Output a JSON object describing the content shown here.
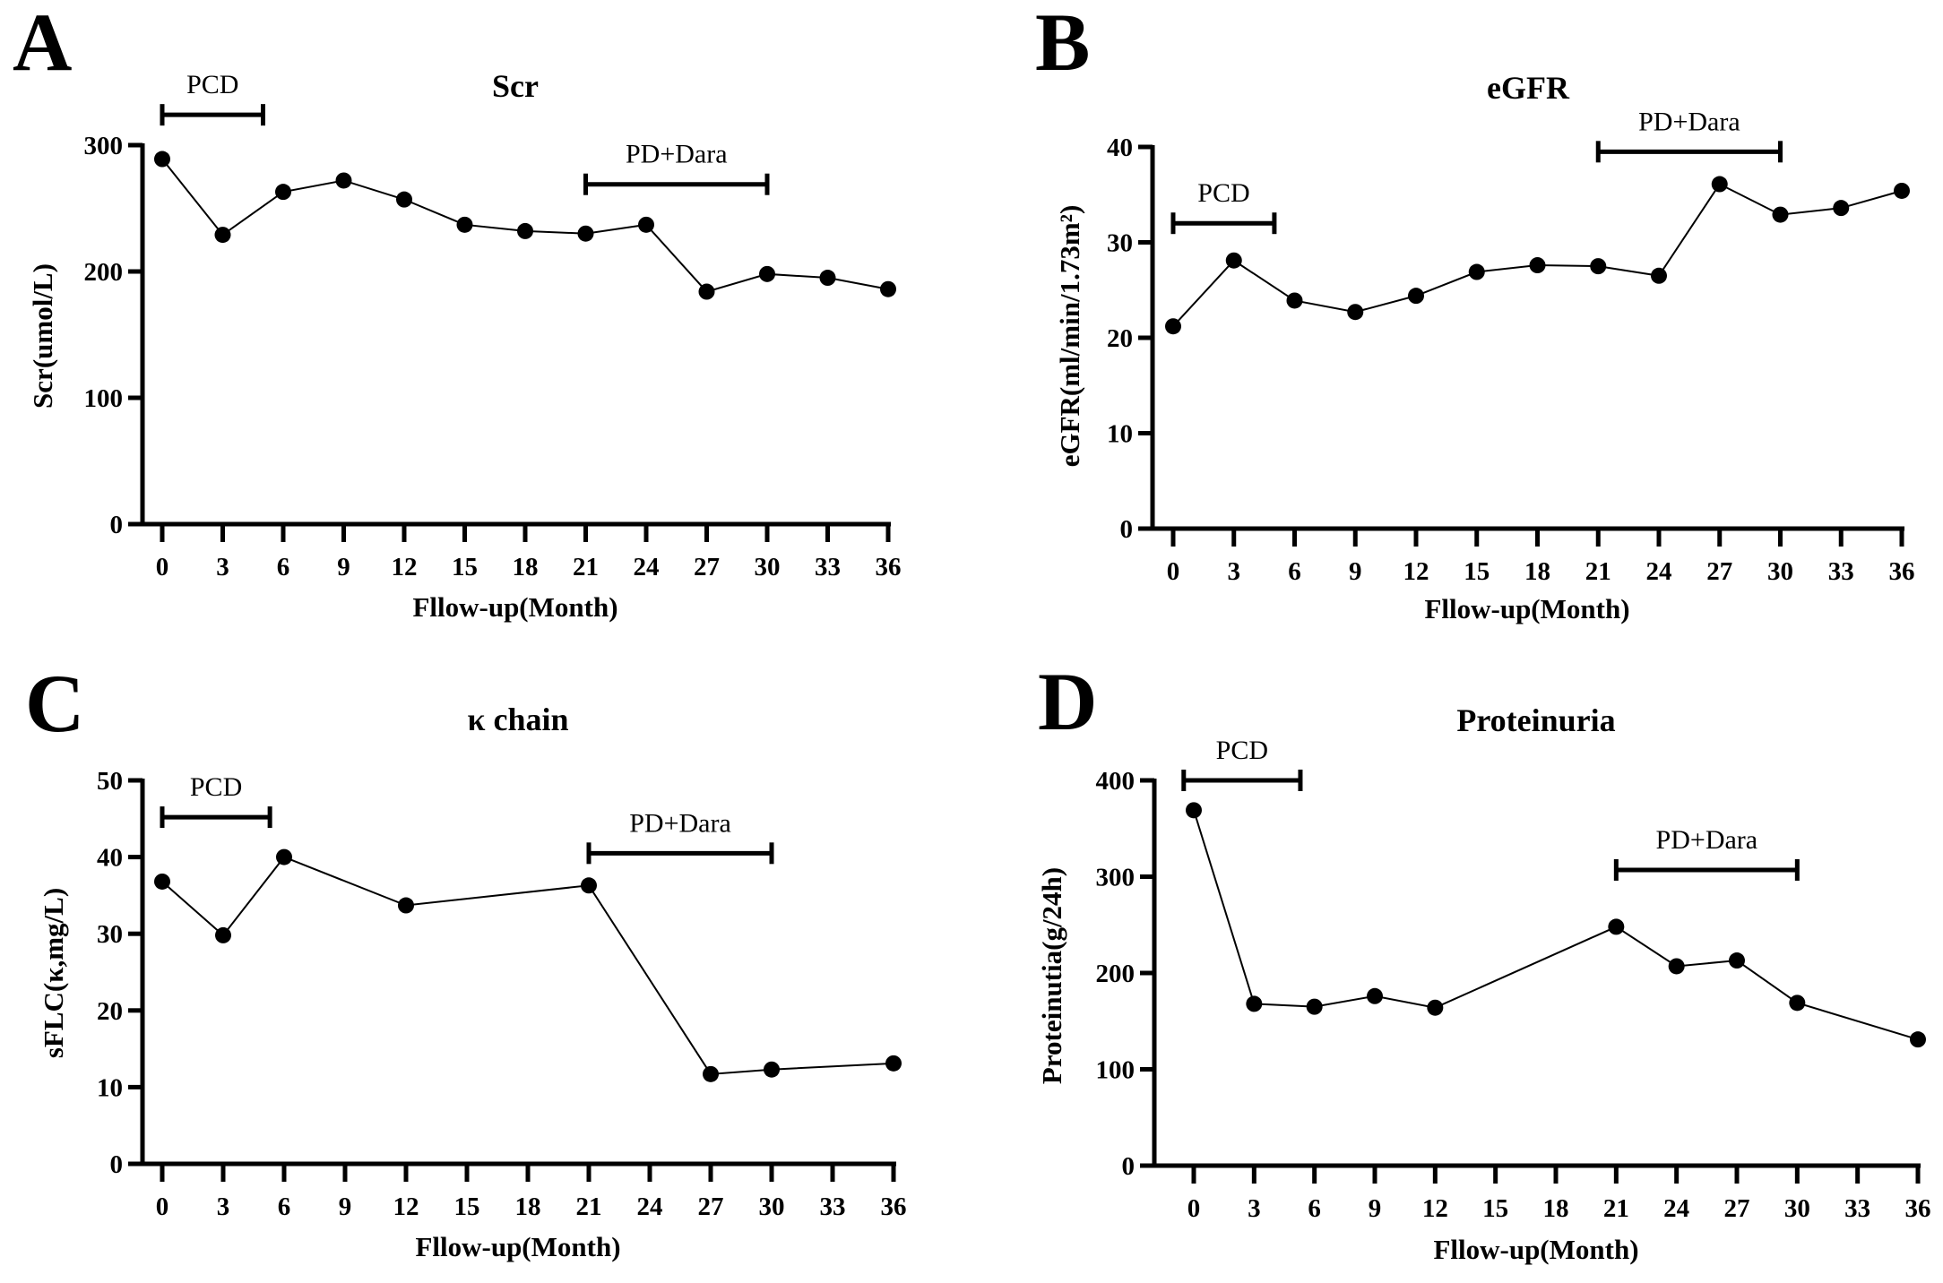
{
  "chart_data": [
    {
      "panel": "A",
      "type": "line",
      "title": "Scr",
      "xlabel": "Fllow-up(Month)",
      "ylabel": "Scr(umol/L)",
      "xlim": [
        0,
        36
      ],
      "ylim": [
        0,
        300
      ],
      "xticks": [
        0,
        3,
        6,
        9,
        12,
        15,
        18,
        21,
        24,
        27,
        30,
        33,
        36
      ],
      "yticks": [
        0,
        100,
        200,
        300
      ],
      "x": [
        0,
        3,
        6,
        9,
        12,
        15,
        18,
        21,
        24,
        27,
        30,
        33,
        36
      ],
      "y": [
        289,
        229,
        263,
        272,
        257,
        237,
        232,
        230,
        237,
        184,
        198,
        195,
        186
      ],
      "annotations": [
        {
          "label": "PCD",
          "start": 0,
          "end": 5,
          "level": 324
        },
        {
          "label": "PD+Dara",
          "start": 21,
          "end": 30,
          "level": 269
        }
      ]
    },
    {
      "panel": "B",
      "type": "line",
      "title": "eGFR",
      "xlabel": "Fllow-up(Month)",
      "ylabel": "eGFR(ml/min/1.73m²)",
      "xlim": [
        0,
        36
      ],
      "ylim": [
        0,
        40
      ],
      "xticks": [
        0,
        3,
        6,
        9,
        12,
        15,
        18,
        21,
        24,
        27,
        30,
        33,
        36
      ],
      "yticks": [
        0,
        10,
        20,
        30,
        40
      ],
      "x": [
        0,
        3,
        6,
        9,
        12,
        15,
        18,
        21,
        24,
        27,
        30,
        33,
        36
      ],
      "y": [
        21.2,
        28.1,
        23.9,
        22.7,
        24.4,
        26.9,
        27.6,
        27.5,
        26.5,
        36.1,
        32.9,
        33.6,
        35.4
      ],
      "annotations": [
        {
          "label": "PCD",
          "start": 0,
          "end": 5,
          "level": 32
        },
        {
          "label": "PD+Dara",
          "start": 21,
          "end": 30,
          "level": 39.5
        }
      ]
    },
    {
      "panel": "C",
      "type": "line",
      "title": "κ chain",
      "xlabel": "Fllow-up(Month)",
      "ylabel": "sFLC(κ,mg/L)",
      "xlim": [
        0,
        36
      ],
      "ylim": [
        0,
        50
      ],
      "xticks": [
        0,
        3,
        6,
        9,
        12,
        15,
        18,
        21,
        24,
        27,
        30,
        33,
        36
      ],
      "yticks": [
        0,
        10,
        20,
        30,
        40,
        50
      ],
      "x": [
        0,
        3,
        6,
        12,
        21,
        27,
        30,
        36
      ],
      "y": [
        36.8,
        29.8,
        40,
        33.7,
        36.3,
        11.7,
        12.3,
        13.1
      ],
      "annotations": [
        {
          "label": "PCD",
          "start": 0,
          "end": 5.3,
          "level": 45.2
        },
        {
          "label": "PD+Dara",
          "start": 21,
          "end": 30,
          "level": 40.5
        }
      ]
    },
    {
      "panel": "D",
      "type": "line",
      "title": "Proteinuria",
      "xlabel": "Fllow-up(Month)",
      "ylabel": "Proteinutia(g/24h)",
      "xlim": [
        -2,
        36
      ],
      "ylim": [
        0,
        400
      ],
      "xticks": [
        0,
        3,
        6,
        9,
        12,
        15,
        18,
        21,
        24,
        27,
        30,
        33,
        36
      ],
      "yticks": [
        0,
        100,
        200,
        300,
        400
      ],
      "x": [
        0,
        3,
        6,
        9,
        12,
        21,
        24,
        27,
        30,
        36
      ],
      "y": [
        369,
        168,
        165,
        176,
        164,
        248,
        207,
        213,
        169,
        131
      ],
      "annotations": [
        {
          "label": "PCD",
          "start": -0.5,
          "end": 5.3,
          "level": 400
        },
        {
          "label": "PD+Dara",
          "start": 21,
          "end": 30,
          "level": 307
        }
      ]
    }
  ]
}
